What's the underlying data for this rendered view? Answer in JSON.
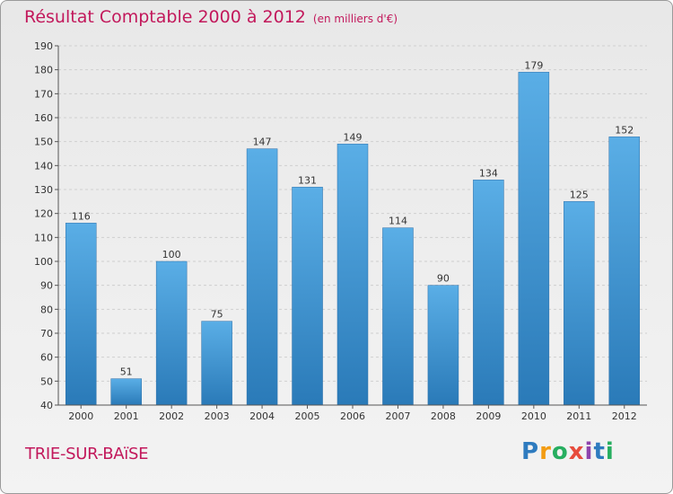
{
  "header": {
    "title": "Résultat Comptable 2000 à 2012",
    "subtitle": "(en milliers d'€)"
  },
  "footer": {
    "location": "TRIE-SUR-BAïSE",
    "logo": [
      "P",
      "r",
      "o",
      "x",
      "i",
      "t",
      "i"
    ],
    "logo_colors": [
      "#2e7bbf",
      "#f39c12",
      "#27ae60",
      "#e74c3c",
      "#8e44ad",
      "#2e7bbf",
      "#27ae60"
    ]
  },
  "chart_data": {
    "type": "bar",
    "title": "Résultat Comptable 2000 à 2012",
    "xlabel": "",
    "ylabel": "",
    "categories": [
      "2000",
      "2001",
      "2002",
      "2003",
      "2004",
      "2005",
      "2006",
      "2007",
      "2008",
      "2009",
      "2010",
      "2011",
      "2012"
    ],
    "values": [
      116,
      51,
      100,
      75,
      147,
      131,
      149,
      114,
      90,
      134,
      179,
      125,
      152
    ],
    "ylim": [
      40,
      190
    ],
    "yticks": [
      40,
      50,
      60,
      70,
      80,
      90,
      100,
      110,
      120,
      130,
      140,
      150,
      160,
      170,
      180,
      190
    ],
    "grid": true,
    "bar_color": "#3f95d6"
  }
}
